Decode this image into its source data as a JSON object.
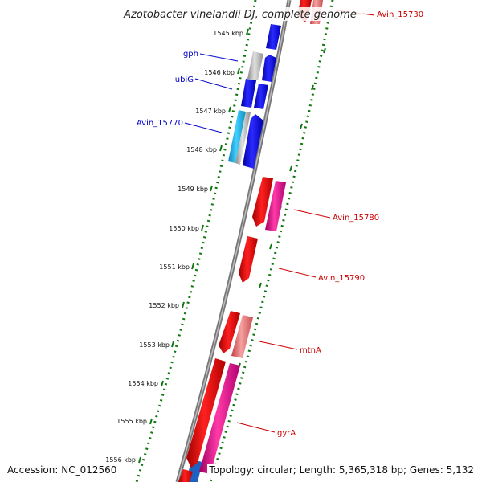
{
  "title": "Azotobacter vinelandii DJ, complete genome",
  "accession_text": "Accession: NC_012560",
  "summary_text": "Topology: circular; Length: 5,365,318 bp; Genes: 5,132",
  "kbp_labels": [
    "1545 kbp",
    "1546 kbp",
    "1547 kbp",
    "1548 kbp",
    "1549 kbp",
    "1550 kbp",
    "1551 kbp",
    "1552 kbp",
    "1553 kbp",
    "1554 kbp",
    "1555 kbp",
    "1556 kbp"
  ],
  "left_labels": [
    "gph",
    "ubiG",
    "Avin_15770"
  ],
  "right_labels": [
    "Avin_15730",
    "Avin_15780",
    "Avin_15790",
    "mtnA",
    "gyrA"
  ],
  "colors": {
    "forward_gene": "#0000ee",
    "reverse_gene": "#ee0000",
    "reverse_light": "#f08c8c",
    "reverse_magenta": "#ee1090",
    "cyan_gene": "#22bbee",
    "gray_gene": "#b0b0b0",
    "backbone": "#888888",
    "tick_green": "#117711",
    "left_label": "#0000cc",
    "right_label": "#cc0000"
  }
}
